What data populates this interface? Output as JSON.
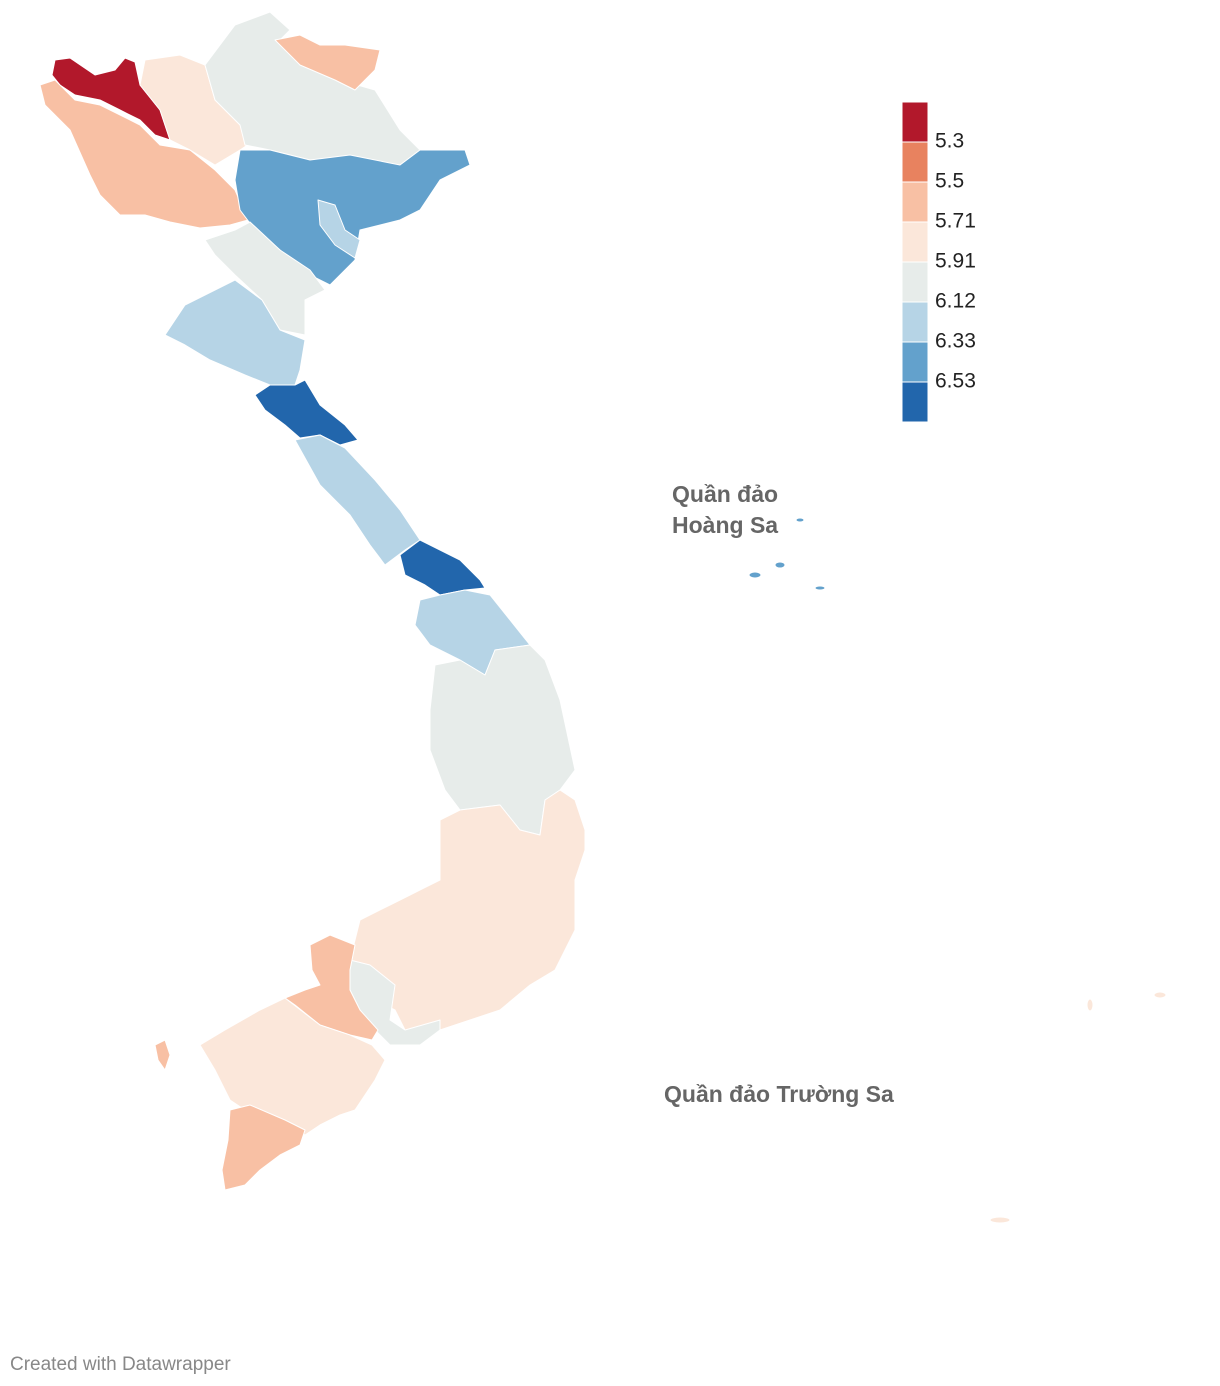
{
  "legend": {
    "colors": [
      "#b2182b",
      "#e8825f",
      "#f8c0a4",
      "#fbe7da",
      "#e7ecea",
      "#b6d4e6",
      "#63a1cc",
      "#2266ac"
    ],
    "ticks": [
      5.3,
      5.5,
      5.71,
      5.91,
      6.12,
      6.33,
      6.53
    ]
  },
  "labels": {
    "hoang_sa": [
      "Quần đảo",
      "Hoàng Sa"
    ],
    "truong_sa": "Quần đảo Trường Sa"
  },
  "credit": "Created with Datawrapper"
}
